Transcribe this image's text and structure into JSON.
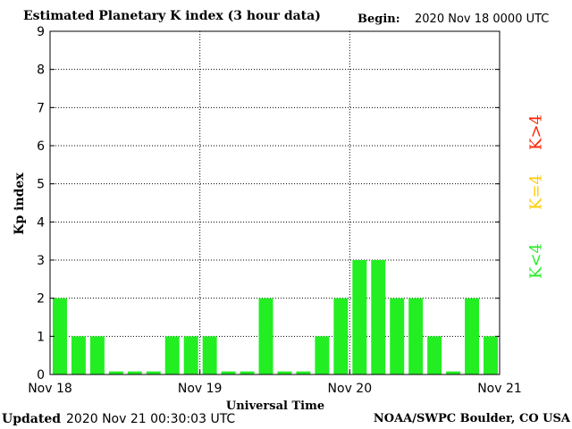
{
  "header": {
    "title": "Estimated Planetary K index (3 hour data)",
    "begin_label": "Begin:",
    "begin_value": "2020 Nov 18 0000 UTC"
  },
  "footer": {
    "updated_label": "Updated",
    "updated_value": "2020 Nov 21 00:30:03 UTC",
    "credit": "NOAA/SWPC Boulder, CO USA"
  },
  "legend": {
    "high": "K>4",
    "mid": "K=4",
    "low": "K<4",
    "high_color": "#ff2200",
    "mid_color": "#ffcc00",
    "low_color": "#22ee22"
  },
  "chart_data": {
    "type": "bar",
    "title": "Estimated Planetary K index (3 hour data)",
    "xlabel": "Universal Time",
    "ylabel": "Kp index",
    "ylim": [
      0,
      9
    ],
    "yticks": [
      "0",
      "1",
      "2",
      "3",
      "4",
      "5",
      "6",
      "7",
      "8",
      "9"
    ],
    "xticks": [
      "Nov 18",
      "Nov 19",
      "Nov 20",
      "Nov 21"
    ],
    "categories": [
      "Nov 18 00",
      "Nov 18 03",
      "Nov 18 06",
      "Nov 18 09",
      "Nov 18 12",
      "Nov 18 15",
      "Nov 18 18",
      "Nov 18 21",
      "Nov 19 00",
      "Nov 19 03",
      "Nov 19 06",
      "Nov 19 09",
      "Nov 19 12",
      "Nov 19 15",
      "Nov 19 18",
      "Nov 19 21",
      "Nov 20 00",
      "Nov 20 03",
      "Nov 20 06",
      "Nov 20 09",
      "Nov 20 12",
      "Nov 20 15",
      "Nov 20 18",
      "Nov 20 21"
    ],
    "values": [
      2,
      1,
      1,
      0,
      0,
      0,
      1,
      1,
      1,
      0,
      0,
      2,
      0,
      0,
      1,
      2,
      3,
      3,
      2,
      2,
      1,
      0,
      2,
      1
    ],
    "bar_color": "#22ee22",
    "grid": true
  }
}
